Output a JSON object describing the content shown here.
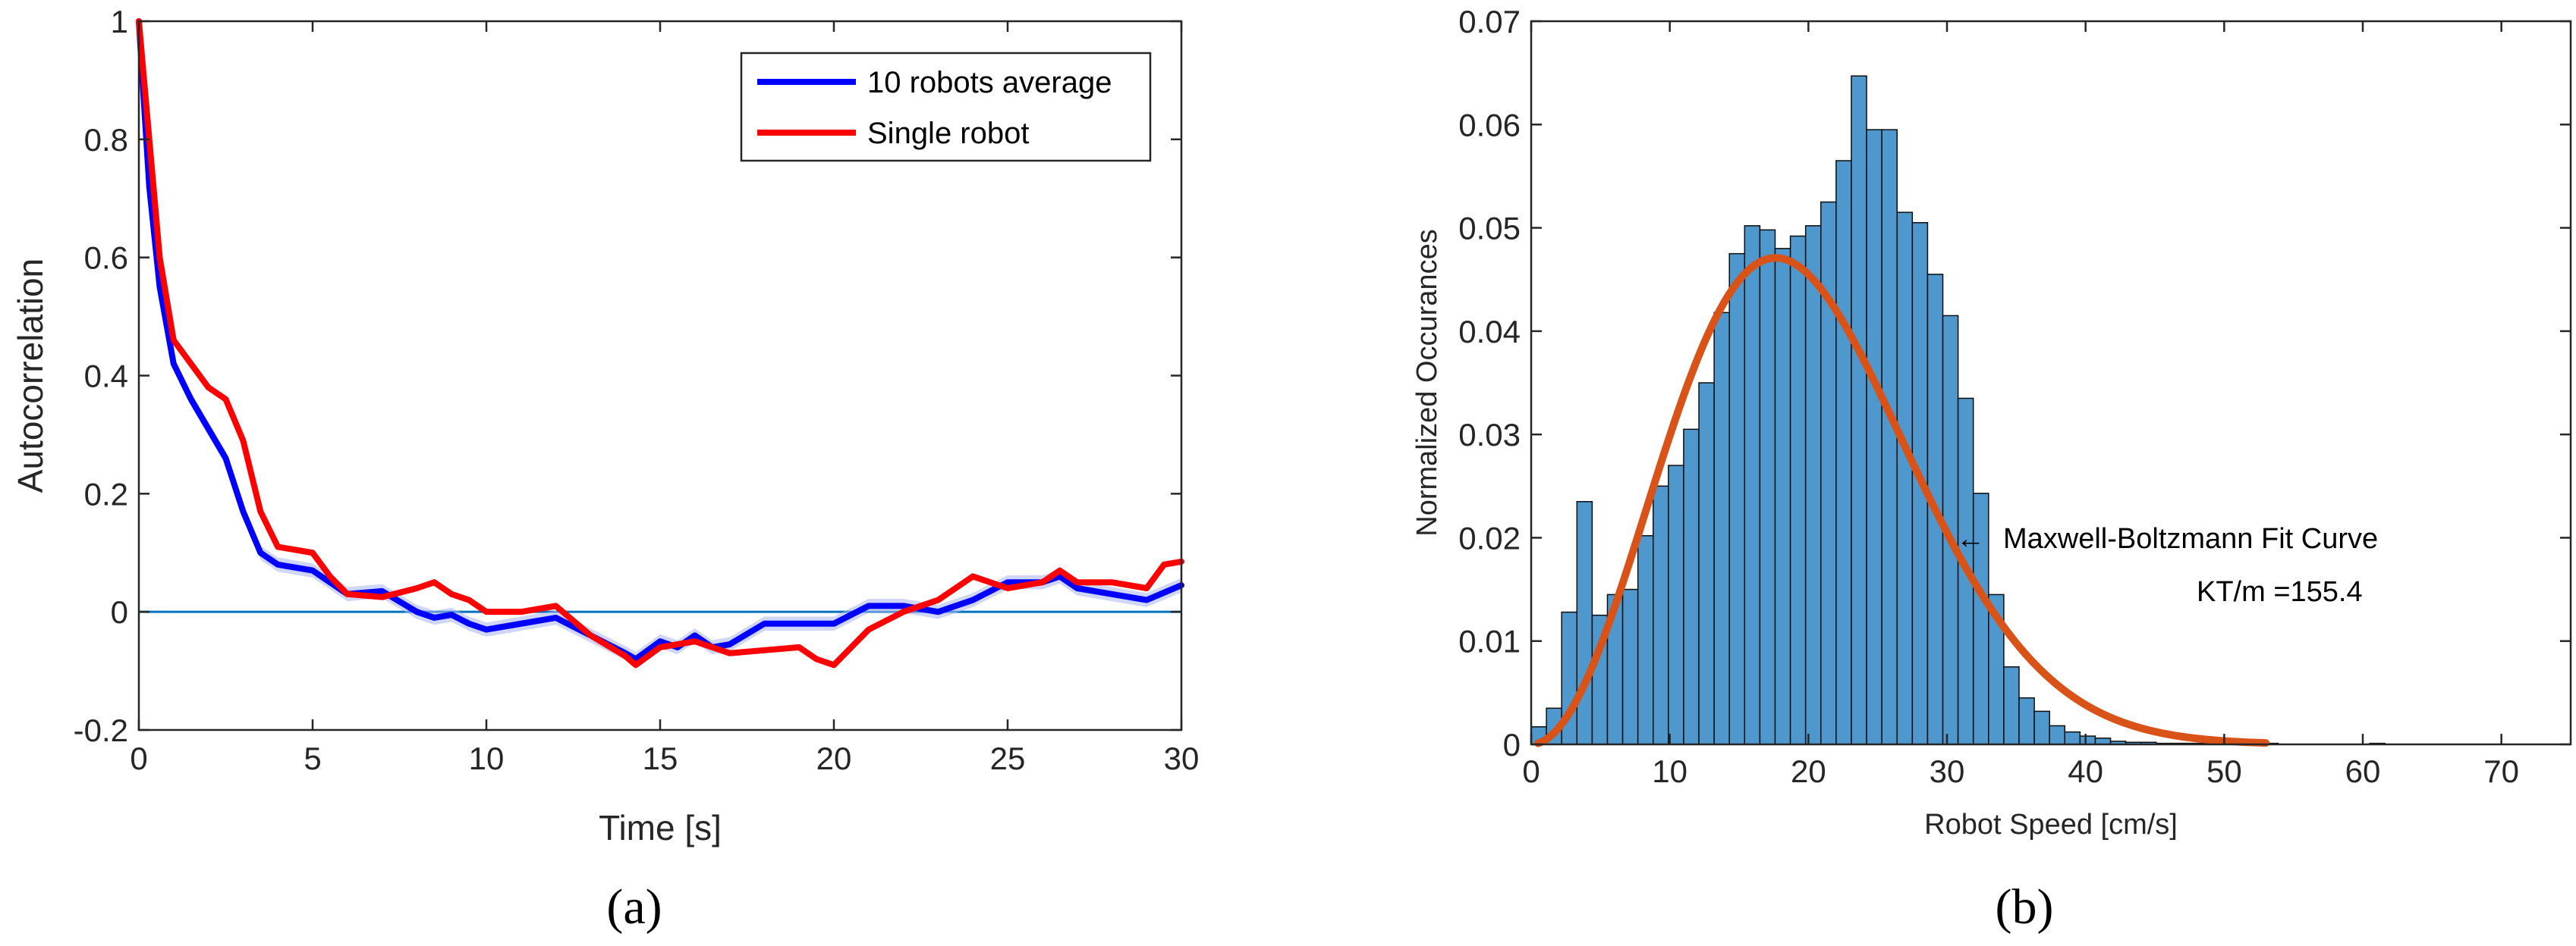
{
  "chart_data": [
    {
      "type": "line",
      "caption": "(a)",
      "xlabel": "Time [s]",
      "ylabel": "Autocorrelation",
      "xlim": [
        0,
        30
      ],
      "ylim": [
        -0.2,
        1
      ],
      "xticks": [
        0,
        5,
        10,
        15,
        20,
        25,
        30
      ],
      "yticks": [
        -0.2,
        0,
        0.2,
        0.4,
        0.6,
        0.8,
        1
      ],
      "ytick_labels": [
        "-0.2",
        "0",
        "0.2",
        "0.4",
        "0.6",
        "0.8",
        "1"
      ],
      "reference_line": 0,
      "legend": {
        "position": "top-right",
        "entries": [
          "10 robots average",
          "Single robot"
        ]
      },
      "colors": {
        "average": "#0000ff",
        "single": "#ff0000",
        "band": "#aab4f0",
        "zero": "#0072bd"
      },
      "series": [
        {
          "name": "10 robots average",
          "x": [
            0,
            0.3,
            0.6,
            1,
            1.5,
            2,
            2.5,
            3,
            3.5,
            4,
            5,
            5.5,
            6,
            7,
            8,
            8.5,
            9,
            9.5,
            10,
            11,
            12,
            13,
            14,
            14.3,
            15,
            15.5,
            16,
            16.5,
            17,
            18,
            19,
            20,
            21,
            22,
            23,
            24,
            25,
            26,
            26.5,
            27,
            28,
            29,
            30
          ],
          "y": [
            1,
            0.72,
            0.55,
            0.42,
            0.36,
            0.31,
            0.26,
            0.17,
            0.1,
            0.08,
            0.07,
            0.05,
            0.03,
            0.035,
            0.0,
            -0.01,
            -0.005,
            -0.02,
            -0.03,
            -0.02,
            -0.01,
            -0.04,
            -0.07,
            -0.08,
            -0.05,
            -0.06,
            -0.04,
            -0.06,
            -0.055,
            -0.02,
            -0.02,
            -0.02,
            0.01,
            0.01,
            0.0,
            0.02,
            0.05,
            0.05,
            0.06,
            0.04,
            0.03,
            0.02,
            0.045
          ]
        },
        {
          "name": "Single robot",
          "x": [
            0,
            0.3,
            0.6,
            1,
            1.5,
            2,
            2.5,
            3,
            3.5,
            4,
            5,
            5.5,
            6,
            7,
            8,
            8.5,
            9,
            9.5,
            10,
            11,
            12,
            13,
            14,
            14.3,
            15,
            16,
            17,
            18,
            19,
            19.5,
            20,
            21,
            22,
            23,
            24,
            25,
            26,
            26.5,
            27,
            28,
            29,
            29.5,
            30
          ],
          "y": [
            1,
            0.8,
            0.6,
            0.46,
            0.42,
            0.38,
            0.36,
            0.29,
            0.17,
            0.11,
            0.1,
            0.06,
            0.03,
            0.025,
            0.04,
            0.05,
            0.03,
            0.02,
            0.0,
            0.0,
            0.01,
            -0.04,
            -0.075,
            -0.09,
            -0.06,
            -0.05,
            -0.07,
            -0.065,
            -0.06,
            -0.08,
            -0.09,
            -0.03,
            0.0,
            0.02,
            0.06,
            0.04,
            0.05,
            0.07,
            0.05,
            0.05,
            0.04,
            0.08,
            0.085
          ]
        }
      ]
    },
    {
      "type": "bar",
      "caption": "(b)",
      "xlabel": "Robot Speed [cm/s]",
      "ylabel": "Normalized Occurances",
      "xlim": [
        0,
        75
      ],
      "ylim": [
        0,
        0.07
      ],
      "xticks": [
        0,
        10,
        20,
        30,
        40,
        50,
        60,
        70
      ],
      "yticks": [
        0,
        0.01,
        0.02,
        0.03,
        0.04,
        0.05,
        0.06,
        0.07
      ],
      "ytick_labels": [
        "0",
        "0.01",
        "0.02",
        "0.03",
        "0.04",
        "0.05",
        "0.06",
        "0.07"
      ],
      "bin_width": 1.1,
      "bin_start": 0,
      "values": [
        0.0017,
        0.0035,
        0.0128,
        0.0235,
        0.0125,
        0.0145,
        0.015,
        0.0202,
        0.025,
        0.027,
        0.0305,
        0.035,
        0.0418,
        0.0475,
        0.0502,
        0.0498,
        0.048,
        0.0492,
        0.0502,
        0.0525,
        0.0565,
        0.0647,
        0.0595,
        0.0595,
        0.0515,
        0.0505,
        0.0455,
        0.0415,
        0.0335,
        0.0243,
        0.0145,
        0.0075,
        0.0045,
        0.0032,
        0.0018,
        0.0012,
        0.0008,
        0.0006,
        0.0003,
        0.0002,
        0.0002,
        0.0001,
        0.0001,
        0.0001,
        0.0001,
        0.0,
        0.0,
        0.0,
        0.0001,
        0.0,
        0.0,
        0.0,
        0.0,
        0.0,
        0.0,
        0.0001
      ],
      "colors": {
        "bars": "#4f98cd",
        "bar_edge": "#0d0d0d",
        "fit": "#d95319"
      },
      "fit_curve": {
        "name": "Maxwell-Boltzmann Fit Curve",
        "kt_m": 155.4,
        "x_range": [
          0.5,
          53
        ],
        "label": "Maxwell-Boltzmann Fit Curve",
        "param_label": "KT/m =155.4"
      }
    }
  ]
}
